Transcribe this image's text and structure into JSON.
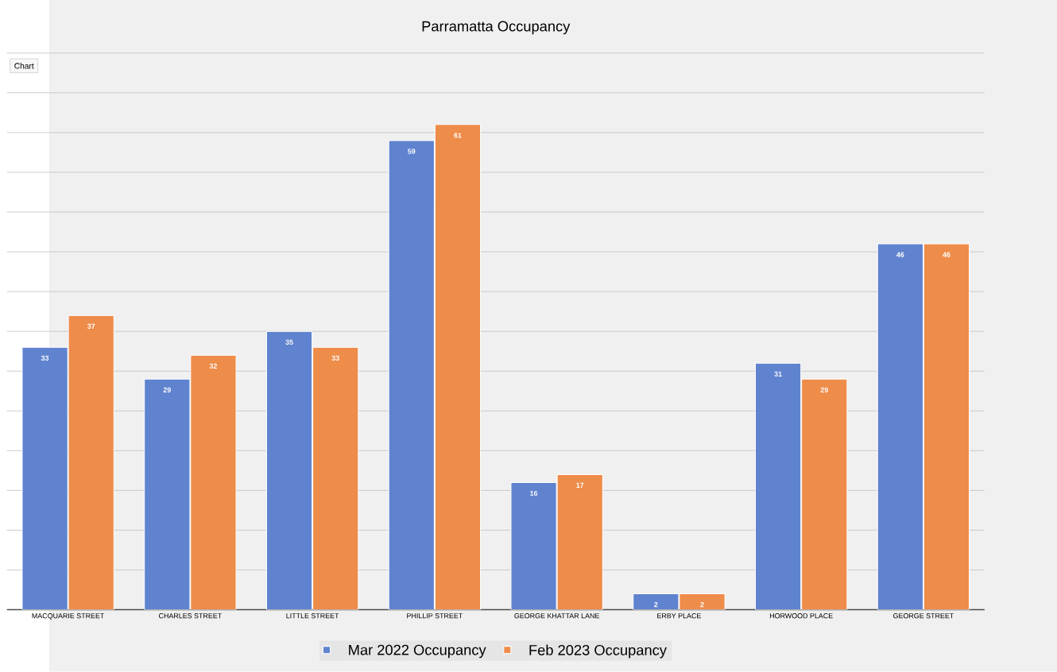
{
  "chart_data": {
    "type": "bar",
    "title": "Parramatta Occupancy",
    "categories": [
      "MACQUARIE STREET",
      "CHARLES STREET",
      "LITTLE STREET",
      "PHILLIP STREET",
      "GEORGE KHATTAR LANE",
      "ERBY PLACE",
      "HORWOOD PLACE",
      "GEORGE STREET"
    ],
    "series": [
      {
        "name": "Mar 2022 Occupancy",
        "color": "#6083cf",
        "values": [
          33,
          29,
          35,
          59,
          16,
          2,
          31,
          46
        ]
      },
      {
        "name": "Feb 2023 Occupancy",
        "color": "#ee8c4a",
        "values": [
          37,
          32,
          33,
          61,
          17,
          2,
          29,
          46
        ]
      }
    ],
    "ylim": [
      0,
      70
    ],
    "tick_labels": "x",
    "grid": "y",
    "legend": "bottom",
    "data_labels": true,
    "annotations": [
      "Chart"
    ]
  }
}
